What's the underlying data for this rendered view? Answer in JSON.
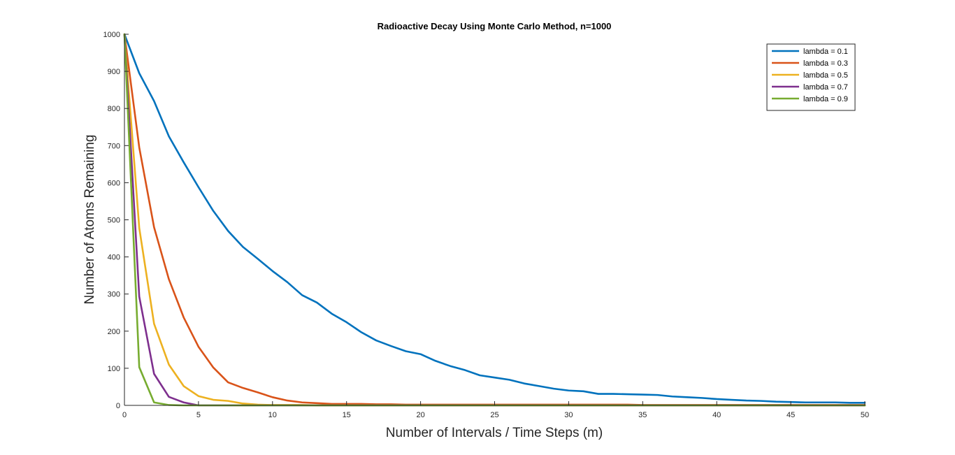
{
  "chart_data": {
    "type": "line",
    "title": "Radioactive Decay Using Monte Carlo Method,  n=1000",
    "xlabel": "Number of Intervals / Time Steps (m)",
    "ylabel": "Number of Atoms Remaining",
    "xlim": [
      0,
      50
    ],
    "ylim": [
      0,
      1000
    ],
    "xticks": [
      0,
      5,
      10,
      15,
      20,
      25,
      30,
      35,
      40,
      45,
      50
    ],
    "yticks": [
      0,
      100,
      200,
      300,
      400,
      500,
      600,
      700,
      800,
      900,
      1000
    ],
    "grid": false,
    "legend_position": "top-right",
    "series": [
      {
        "name": "lambda = 0.1",
        "color": "#0072BD",
        "x": [
          0,
          1,
          2,
          3,
          4,
          5,
          6,
          7,
          8,
          9,
          10,
          11,
          12,
          13,
          14,
          15,
          16,
          17,
          18,
          19,
          20,
          21,
          22,
          23,
          24,
          25,
          26,
          27,
          28,
          29,
          30,
          31,
          32,
          33,
          34,
          35,
          36,
          37,
          38,
          39,
          40,
          41,
          42,
          43,
          44,
          45,
          46,
          47,
          48,
          49,
          50
        ],
        "y": [
          1000,
          895,
          820,
          725,
          655,
          588,
          524,
          470,
          427,
          395,
          362,
          332,
          297,
          277,
          247,
          224,
          197,
          175,
          160,
          146,
          138,
          120,
          106,
          95,
          81,
          75,
          69,
          59,
          52,
          45,
          40,
          38,
          31,
          31,
          30,
          29,
          28,
          24,
          22,
          20,
          17,
          15,
          13,
          12,
          10,
          9,
          8,
          8,
          8,
          7,
          7
        ]
      },
      {
        "name": "lambda = 0.3",
        "color": "#D95319",
        "x": [
          0,
          1,
          2,
          3,
          4,
          5,
          6,
          7,
          8,
          9,
          10,
          11,
          12,
          13,
          14,
          15,
          16,
          17,
          18,
          19,
          20,
          21,
          22,
          23,
          24,
          25,
          26,
          27,
          28,
          29,
          30,
          31,
          32,
          33,
          34,
          35,
          36,
          37,
          38,
          39,
          40,
          41,
          42,
          43,
          44,
          45,
          46,
          47,
          48,
          49,
          50
        ],
        "y": [
          1000,
          695,
          480,
          340,
          237,
          158,
          102,
          62,
          47,
          35,
          22,
          13,
          8,
          6,
          4,
          4,
          4,
          3,
          3,
          2,
          2,
          2,
          2,
          2,
          2,
          2,
          2,
          2,
          2,
          2,
          2,
          2,
          2,
          2,
          2,
          1,
          1,
          1,
          1,
          1,
          1,
          1,
          1,
          1,
          1,
          1,
          1,
          1,
          1,
          1,
          1
        ]
      },
      {
        "name": "lambda = 0.5",
        "color": "#EDB120",
        "x": [
          0,
          1,
          2,
          3,
          4,
          5,
          6,
          7,
          8,
          9,
          10,
          11,
          12,
          13,
          14,
          15,
          16,
          17,
          18,
          19,
          20,
          21,
          22,
          23,
          24,
          25,
          26,
          27,
          28,
          29,
          30,
          31,
          32,
          33,
          34,
          35,
          36,
          37,
          38,
          39,
          40,
          41,
          42,
          43,
          44,
          45,
          46,
          47,
          48,
          49,
          50
        ],
        "y": [
          1000,
          478,
          220,
          110,
          52,
          25,
          15,
          12,
          5,
          2,
          1,
          1,
          1,
          0,
          0,
          0,
          0,
          0,
          0,
          0,
          0,
          0,
          0,
          0,
          0,
          0,
          0,
          0,
          0,
          0,
          0,
          0,
          0,
          0,
          0,
          0,
          0,
          0,
          0,
          0,
          0,
          0,
          0,
          0,
          0,
          0,
          0,
          0,
          0,
          0,
          0
        ]
      },
      {
        "name": "lambda = 0.7",
        "color": "#7E2F8E",
        "x": [
          0,
          1,
          2,
          3,
          4,
          5,
          6,
          7,
          8,
          9,
          10,
          11,
          12,
          13,
          14,
          15,
          16,
          17,
          18,
          19,
          20,
          21,
          22,
          23,
          24,
          25,
          26,
          27,
          28,
          29,
          30,
          31,
          32,
          33,
          34,
          35,
          36,
          37,
          38,
          39,
          40,
          41,
          42,
          43,
          44,
          45,
          46,
          47,
          48,
          49,
          50
        ],
        "y": [
          1000,
          293,
          85,
          23,
          8,
          0,
          0,
          0,
          0,
          0,
          0,
          0,
          0,
          0,
          0,
          0,
          0,
          0,
          0,
          0,
          0,
          0,
          0,
          0,
          0,
          0,
          0,
          0,
          0,
          0,
          0,
          0,
          0,
          0,
          0,
          0,
          0,
          0,
          0,
          0,
          0,
          0,
          0,
          0,
          0,
          0,
          0,
          0,
          0,
          0,
          0
        ]
      },
      {
        "name": "lambda = 0.9",
        "color": "#77AC30",
        "x": [
          0,
          1,
          2,
          3,
          4,
          5,
          6,
          7,
          8,
          9,
          10,
          11,
          12,
          13,
          14,
          15,
          16,
          17,
          18,
          19,
          20,
          21,
          22,
          23,
          24,
          25,
          26,
          27,
          28,
          29,
          30,
          31,
          32,
          33,
          34,
          35,
          36,
          37,
          38,
          39,
          40,
          41,
          42,
          43,
          44,
          45,
          46,
          47,
          48,
          49,
          50
        ],
        "y": [
          1000,
          103,
          8,
          1,
          0,
          0,
          0,
          0,
          0,
          0,
          0,
          0,
          0,
          0,
          0,
          0,
          0,
          0,
          0,
          0,
          0,
          0,
          0,
          0,
          0,
          0,
          0,
          0,
          0,
          0,
          0,
          0,
          0,
          0,
          0,
          0,
          0,
          0,
          0,
          0,
          0,
          0,
          0,
          0,
          0,
          0,
          0,
          0,
          0,
          0,
          0
        ]
      }
    ]
  }
}
